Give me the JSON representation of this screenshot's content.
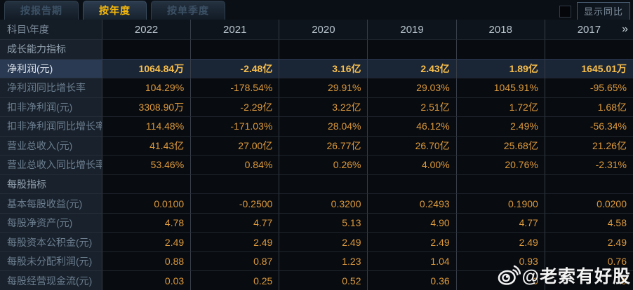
{
  "tabs": [
    {
      "label": "按报告期",
      "active": false
    },
    {
      "label": "按年度",
      "active": true
    },
    {
      "label": "按单季度",
      "active": false
    }
  ],
  "controls": {
    "show_yoy_label": "显示同比",
    "checkbox_checked": false
  },
  "table": {
    "corner_label": "科目\\年度",
    "years": [
      "2022",
      "2021",
      "2020",
      "2019",
      "2018",
      "2017"
    ],
    "more_years_icon": "»",
    "rows": [
      {
        "type": "section",
        "label": "成长能力指标",
        "values": [
          "",
          "",
          "",
          "",
          "",
          ""
        ]
      },
      {
        "type": "highlight",
        "label": "净利润(元)",
        "values": [
          "1064.84万",
          "-2.48亿",
          "3.16亿",
          "2.43亿",
          "1.89亿",
          "1645.01万"
        ]
      },
      {
        "type": "data",
        "label": "净利润同比增长率",
        "values": [
          "104.29%",
          "-178.54%",
          "29.91%",
          "29.03%",
          "1045.91%",
          "-95.65%"
        ]
      },
      {
        "type": "data",
        "label": "扣非净利润(元)",
        "values": [
          "3308.90万",
          "-2.29亿",
          "3.22亿",
          "2.51亿",
          "1.72亿",
          "1.68亿"
        ]
      },
      {
        "type": "data",
        "label": "扣非净利润同比增长率",
        "values": [
          "114.48%",
          "-171.03%",
          "28.04%",
          "46.12%",
          "2.49%",
          "-56.34%"
        ]
      },
      {
        "type": "data",
        "label": "营业总收入(元)",
        "values": [
          "41.43亿",
          "27.00亿",
          "26.77亿",
          "26.70亿",
          "25.68亿",
          "21.26亿"
        ]
      },
      {
        "type": "data",
        "label": "营业总收入同比增长率",
        "values": [
          "53.46%",
          "0.84%",
          "0.26%",
          "4.00%",
          "20.76%",
          "-2.31%"
        ]
      },
      {
        "type": "section",
        "label": "每股指标",
        "values": [
          "",
          "",
          "",
          "",
          "",
          ""
        ]
      },
      {
        "type": "data",
        "label": "基本每股收益(元)",
        "values": [
          "0.0100",
          "-0.2500",
          "0.3200",
          "0.2493",
          "0.1900",
          "0.0200"
        ]
      },
      {
        "type": "data",
        "label": "每股净资产(元)",
        "values": [
          "4.78",
          "4.77",
          "5.13",
          "4.90",
          "4.77",
          "4.58"
        ]
      },
      {
        "type": "data",
        "label": "每股资本公积金(元)",
        "values": [
          "2.49",
          "2.49",
          "2.49",
          "2.49",
          "2.49",
          "2.49"
        ]
      },
      {
        "type": "data",
        "label": "每股未分配利润(元)",
        "values": [
          "0.88",
          "0.87",
          "1.23",
          "1.04",
          "0.93",
          "0.76"
        ]
      },
      {
        "type": "data",
        "label": "每股经营现金流(元)",
        "values": [
          "0.03",
          "0.25",
          "0.52",
          "0.36",
          "0",
          "9"
        ]
      }
    ]
  },
  "watermark": {
    "text": "@老索有好股",
    "icon": "weibo-logo"
  },
  "colors": {
    "accent_gold": "#f7b90a",
    "value_orange": "#dd9a3c",
    "highlight_value_gold": "#f8bf4c",
    "highlight_row_bg": "#1a2536",
    "label_column_bg": "#18212c"
  }
}
